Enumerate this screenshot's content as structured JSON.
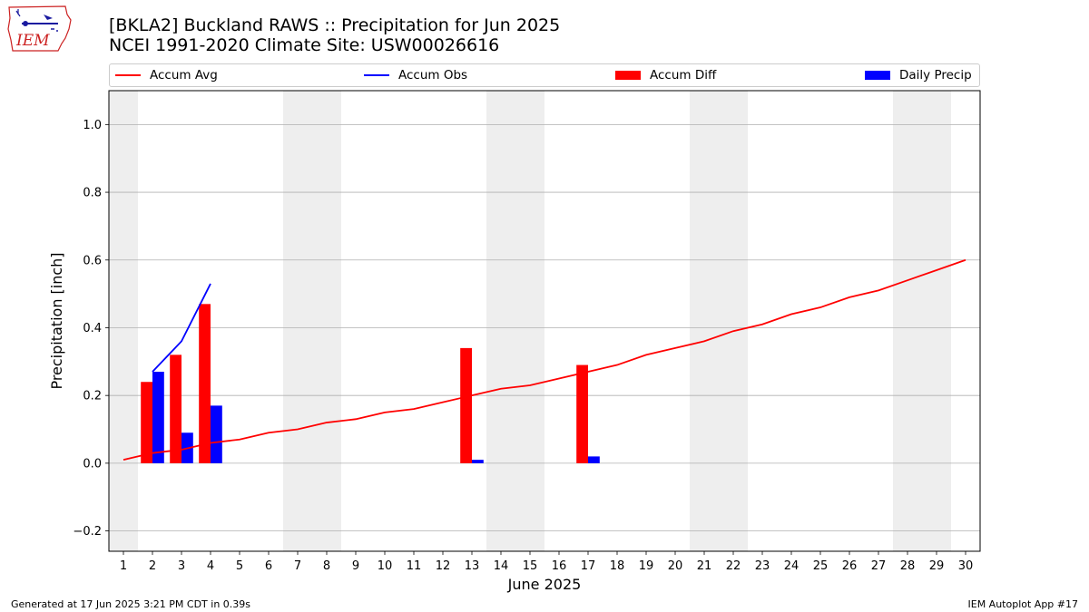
{
  "logo": {
    "text": "IEM",
    "icon": "iem-iowa-logo-icon"
  },
  "header": {
    "title_line1": "[BKLA2] Buckland RAWS :: Precipitation for Jun 2025",
    "title_line2": "NCEI 1991-2020 Climate Site: USW00026616"
  },
  "footer": {
    "left": "Generated at 17 Jun 2025 3:21 PM CDT in 0.39s",
    "right": "IEM Autoplot App #17"
  },
  "colors": {
    "accum_avg": "#ff0000",
    "accum_obs": "#0000ff",
    "accum_diff": "#ff0000",
    "daily_precip": "#0000ff",
    "weekend_band": "#eeeeee",
    "grid": "#b0b0b0"
  },
  "chart_data": {
    "type": "bar",
    "xlabel": "June 2025",
    "ylabel": "Precipitation [inch]",
    "ylim": [
      -0.26,
      1.1
    ],
    "xlim": [
      0.5,
      30.5
    ],
    "x": [
      1,
      2,
      3,
      4,
      5,
      6,
      7,
      8,
      9,
      10,
      11,
      12,
      13,
      14,
      15,
      16,
      17,
      18,
      19,
      20,
      21,
      22,
      23,
      24,
      25,
      26,
      27,
      28,
      29,
      30
    ],
    "x_tick_labels": [
      "1",
      "2",
      "3",
      "4",
      "5",
      "6",
      "7",
      "8",
      "9",
      "10",
      "11",
      "12",
      "13",
      "14",
      "15",
      "16",
      "17",
      "18",
      "19",
      "20",
      "21",
      "22",
      "23",
      "24",
      "25",
      "26",
      "27",
      "28",
      "29",
      "30"
    ],
    "y_ticks": [
      -0.2,
      0.0,
      0.2,
      0.4,
      0.6,
      0.8,
      1.0
    ],
    "y_tick_labels": [
      "−0.2",
      "0.0",
      "0.2",
      "0.4",
      "0.6",
      "0.8",
      "1.0"
    ],
    "grid": true,
    "legend_position": "top",
    "weekend_bands": [
      [
        0.5,
        1.5
      ],
      [
        6.5,
        8.5
      ],
      [
        13.5,
        15.5
      ],
      [
        20.5,
        22.5
      ],
      [
        27.5,
        29.5
      ]
    ],
    "series": [
      {
        "name": "Accum Avg",
        "kind": "line",
        "x": [
          1,
          2,
          3,
          4,
          5,
          6,
          7,
          8,
          9,
          10,
          11,
          12,
          13,
          14,
          15,
          16,
          17,
          18,
          19,
          20,
          21,
          22,
          23,
          24,
          25,
          26,
          27,
          28,
          29,
          30
        ],
        "values": [
          0.01,
          0.03,
          0.04,
          0.06,
          0.07,
          0.09,
          0.1,
          0.12,
          0.13,
          0.15,
          0.16,
          0.18,
          0.2,
          0.22,
          0.23,
          0.25,
          0.27,
          0.29,
          0.32,
          0.34,
          0.36,
          0.39,
          0.41,
          0.44,
          0.46,
          0.49,
          0.51,
          0.54,
          0.57,
          0.6
        ]
      },
      {
        "name": "Accum Obs",
        "kind": "line",
        "x": [
          2,
          3,
          4
        ],
        "values": [
          0.27,
          0.36,
          0.53
        ]
      },
      {
        "name": "Accum Diff",
        "kind": "bar",
        "x": [
          2,
          3,
          4,
          13,
          17
        ],
        "values": [
          0.24,
          0.32,
          0.47,
          0.34,
          0.29
        ]
      },
      {
        "name": "Daily Precip",
        "kind": "bar",
        "x": [
          2,
          3,
          4,
          13,
          17
        ],
        "values": [
          0.27,
          0.09,
          0.17,
          0.01,
          0.02
        ]
      }
    ]
  }
}
